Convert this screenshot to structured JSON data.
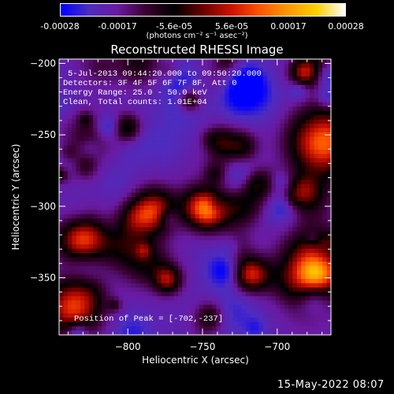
{
  "colorbar": {
    "ticks": [
      "-0.00028",
      "-0.00017",
      "-5.6e-05",
      "5.6e-05",
      "0.00017",
      "0.00028"
    ],
    "units": "(photons cm⁻² s⁻¹ asec⁻²)",
    "colors": [
      "#0000ff",
      "#4d2cc0",
      "#6a1aa0",
      "#3a0030",
      "#000000",
      "#6b0000",
      "#cc1100",
      "#ff5500",
      "#ff9900",
      "#ffd000",
      "#ffffff"
    ]
  },
  "title": "Reconstructed RHESSI Image",
  "info": {
    "line1": "5-Jul-2013 09:44:20.000 to 09:50:20.000",
    "line2": "Detectors: 3F 4F 5F 6F 7F 8F, Att 0",
    "line3": "Energy Range: 25.0 - 50.0 keV",
    "line4": "Clean, Total counts: 1.01E+04",
    "peak": "Position of Peak = [-702,-237]"
  },
  "footer": {
    "date": "15-May-2022 08:07"
  },
  "chart_data": {
    "type": "heatmap",
    "title": "Reconstructed RHESSI Image",
    "xlabel": "Heliocentric X (arcsec)",
    "ylabel": "Heliocentric Y (arcsec)",
    "xlim": [
      -846,
      -664
    ],
    "ylim": [
      -390,
      -197
    ],
    "xticks": [
      -800,
      -750,
      -700
    ],
    "yticks": [
      -200,
      -250,
      -300,
      -350
    ],
    "xtick_labels": [
      "−800",
      "−750",
      "−700"
    ],
    "ytick_labels": [
      "−200",
      "−250",
      "−300",
      "−350"
    ],
    "value_range": [
      -0.00028,
      0.00028
    ],
    "peak_position": [
      -702,
      -237
    ]
  }
}
